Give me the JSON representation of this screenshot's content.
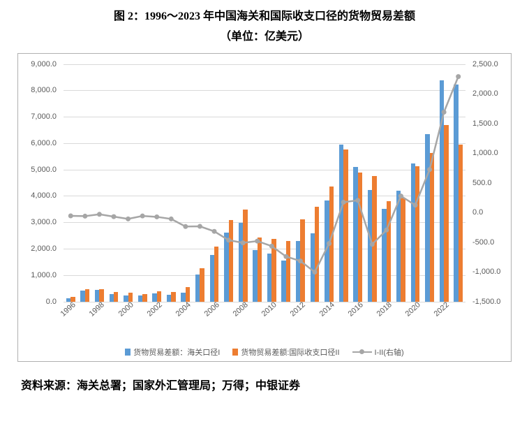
{
  "title_line1": "图 2：1996～2023 年中国海关和国际收支口径的货物贸易差额",
  "title_line2": "（单位：亿美元）",
  "source": "资料来源：海关总署；国家外汇管理局；万得；中银证券",
  "chart": {
    "type": "bar+line",
    "background_color": "#ffffff",
    "grid_color": "#d9d9d9",
    "axis_text_color": "#595959",
    "border_color": "#b0b0b0",
    "y_left": {
      "min": 0,
      "max": 9000,
      "step": 1000,
      "format": ",.1f"
    },
    "y_right": {
      "min": -1500,
      "max": 2500,
      "step": 500,
      "format": ",.1f"
    },
    "years": [
      1996,
      1997,
      1998,
      1999,
      2000,
      2001,
      2002,
      2003,
      2004,
      2005,
      2006,
      2007,
      2008,
      2009,
      2010,
      2011,
      2012,
      2013,
      2014,
      2015,
      2016,
      2017,
      2018,
      2019,
      2020,
      2021,
      2022,
      2023
    ],
    "x_tick_years": [
      1996,
      1998,
      2000,
      2002,
      2004,
      2006,
      2008,
      2010,
      2012,
      2014,
      2016,
      2018,
      2020,
      2022
    ],
    "series_bar1": {
      "label": "货物贸易差额：海关口径I",
      "color": "#5b9bd5",
      "values": [
        122,
        404,
        435,
        292,
        241,
        226,
        304,
        255,
        321,
        1020,
        1775,
        2618,
        2981,
        1957,
        1815,
        1549,
        2303,
        2590,
        3831,
        5939,
        5097,
        4225,
        3509,
        4211,
        5240,
        6354,
        8380,
        8232
      ]
    },
    "series_bar2": {
      "label": "货物贸易差额:国际收支口径II",
      "color": "#ed7d31",
      "values": [
        175,
        462,
        462,
        358,
        345,
        281,
        374,
        360,
        554,
        1250,
        2089,
        3080,
        3488,
        2435,
        2378,
        2287,
        3116,
        3590,
        4350,
        5762,
        4889,
        4757,
        3800,
        3930,
        5112,
        5627,
        6686,
        5939
      ]
    },
    "series_line": {
      "label": "I-II(右轴)",
      "color": "#a6a6a6",
      "marker_color": "#a6a6a6",
      "line_width": 2.5,
      "marker_size": 7,
      "values": [
        -53,
        -58,
        -27,
        -66,
        -104,
        -55,
        -70,
        -105,
        -233,
        -230,
        -314,
        -462,
        -507,
        -478,
        -563,
        -738,
        -813,
        -1000,
        -519,
        177,
        208,
        -532,
        -291,
        281,
        128,
        727,
        1694,
        2293
      ]
    },
    "bar_group_width_ratio": 0.62
  }
}
